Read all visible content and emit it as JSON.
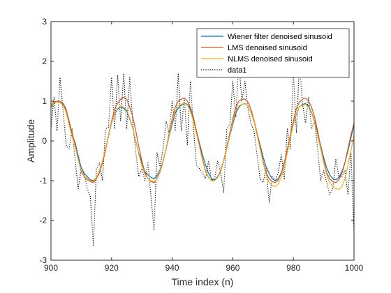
{
  "chart_data": {
    "type": "line",
    "title": "",
    "xlabel": "Time index (n)",
    "ylabel": "Amplitude",
    "xlim": [
      900,
      1000
    ],
    "ylim": [
      -3,
      3
    ],
    "xticks": [
      900,
      920,
      940,
      960,
      980,
      1000
    ],
    "yticks": [
      -3,
      -2,
      -1,
      0,
      1,
      2,
      3
    ],
    "grid": false,
    "legend_position": "top-right",
    "x": [
      900,
      901,
      902,
      903,
      904,
      905,
      906,
      907,
      908,
      909,
      910,
      911,
      912,
      913,
      914,
      915,
      916,
      917,
      918,
      919,
      920,
      921,
      922,
      923,
      924,
      925,
      926,
      927,
      928,
      929,
      930,
      931,
      932,
      933,
      934,
      935,
      936,
      937,
      938,
      939,
      940,
      941,
      942,
      943,
      944,
      945,
      946,
      947,
      948,
      949,
      950,
      951,
      952,
      953,
      954,
      955,
      956,
      957,
      958,
      959,
      960,
      961,
      962,
      963,
      964,
      965,
      966,
      967,
      968,
      969,
      970,
      971,
      972,
      973,
      974,
      975,
      976,
      977,
      978,
      979,
      980,
      981,
      982,
      983,
      984,
      985,
      986,
      987,
      988,
      989,
      990,
      991,
      992,
      993,
      994,
      995,
      996,
      997,
      998,
      999,
      1000
    ],
    "series": [
      {
        "name": "Wiener filter denoised sinusoid",
        "color": "#0072BD",
        "style": "solid",
        "values": [
          0.84,
          0.94,
          0.98,
          0.97,
          0.92,
          0.78,
          0.45,
          0.15,
          -0.05,
          -0.38,
          -0.68,
          -0.82,
          -0.9,
          -0.98,
          -1.0,
          -0.92,
          -0.78,
          -0.52,
          -0.22,
          0.12,
          0.45,
          0.68,
          0.8,
          0.85,
          0.82,
          0.75,
          0.55,
          0.32,
          -0.02,
          -0.32,
          -0.55,
          -0.78,
          -0.85,
          -0.92,
          -0.95,
          -0.88,
          -0.72,
          -0.5,
          -0.2,
          0.12,
          0.42,
          0.7,
          0.82,
          0.9,
          0.95,
          0.92,
          0.8,
          0.55,
          0.25,
          -0.05,
          -0.35,
          -0.6,
          -0.82,
          -0.95,
          -0.98,
          -0.9,
          -0.75,
          -0.5,
          -0.2,
          0.12,
          0.42,
          0.7,
          0.85,
          0.92,
          0.94,
          0.88,
          0.72,
          0.5,
          0.2,
          -0.1,
          -0.4,
          -0.65,
          -0.82,
          -0.95,
          -1.0,
          -0.95,
          -0.8,
          -0.55,
          -0.25,
          0.1,
          0.42,
          0.68,
          0.85,
          0.92,
          0.94,
          0.88,
          0.72,
          0.48,
          0.2,
          -0.12,
          -0.42,
          -0.68,
          -0.85,
          -0.95,
          -0.98,
          -0.92,
          -0.78,
          -0.55,
          -0.25,
          0.08,
          0.4
        ]
      },
      {
        "name": "LMS denoised sinusoid",
        "color": "#D95319",
        "style": "solid",
        "values": [
          0.9,
          0.98,
          1.0,
          1.0,
          0.95,
          0.8,
          0.5,
          0.2,
          -0.1,
          -0.45,
          -0.78,
          -0.9,
          -0.98,
          -1.02,
          -1.05,
          -0.95,
          -0.8,
          -0.55,
          -0.25,
          0.15,
          0.5,
          0.8,
          0.95,
          1.05,
          1.1,
          1.05,
          0.85,
          0.6,
          0.25,
          -0.15,
          -0.5,
          -0.8,
          -0.95,
          -1.02,
          -1.05,
          -0.95,
          -0.78,
          -0.52,
          -0.2,
          0.2,
          0.55,
          0.85,
          1.0,
          1.05,
          1.08,
          1.0,
          0.85,
          0.6,
          0.25,
          -0.1,
          -0.45,
          -0.75,
          -0.92,
          -1.0,
          -1.0,
          -0.92,
          -0.75,
          -0.5,
          -0.15,
          0.2,
          0.55,
          0.85,
          1.0,
          1.05,
          1.05,
          0.98,
          0.8,
          0.52,
          0.2,
          -0.15,
          -0.5,
          -0.8,
          -0.95,
          -1.02,
          -1.05,
          -0.98,
          -0.82,
          -0.55,
          -0.2,
          0.15,
          0.5,
          0.82,
          0.98,
          1.05,
          1.08,
          1.0,
          0.85,
          0.6,
          0.25,
          -0.15,
          -0.5,
          -0.8,
          -0.95,
          -1.02,
          -1.05,
          -0.98,
          -0.82,
          -0.55,
          -0.2,
          0.15,
          0.45
        ]
      },
      {
        "name": "NLMS denoised sinusoid",
        "color": "#EDB120",
        "style": "solid",
        "values": [
          0.86,
          0.95,
          0.98,
          0.96,
          0.9,
          0.72,
          0.4,
          0.1,
          -0.15,
          -0.48,
          -0.75,
          -0.88,
          -0.95,
          -1.0,
          -1.02,
          -0.92,
          -0.75,
          -0.5,
          -0.2,
          0.15,
          0.45,
          0.7,
          0.82,
          0.88,
          0.85,
          0.78,
          0.58,
          0.32,
          0.0,
          -0.35,
          -0.62,
          -0.85,
          -0.95,
          -1.0,
          -1.02,
          -0.95,
          -0.75,
          -0.5,
          -0.2,
          0.15,
          0.48,
          0.75,
          0.88,
          0.92,
          0.95,
          0.9,
          0.75,
          0.5,
          0.18,
          -0.15,
          -0.5,
          -0.78,
          -0.92,
          -1.0,
          -1.0,
          -0.92,
          -0.78,
          -0.52,
          -0.2,
          0.15,
          0.48,
          0.75,
          0.88,
          0.92,
          0.95,
          0.88,
          0.72,
          0.48,
          0.15,
          -0.2,
          -0.55,
          -0.85,
          -1.05,
          -1.12,
          -1.15,
          -1.08,
          -0.92,
          -0.65,
          -0.3,
          0.08,
          0.42,
          0.7,
          0.85,
          0.9,
          0.92,
          0.85,
          0.7,
          0.45,
          0.12,
          -0.2,
          -0.55,
          -0.85,
          -1.05,
          -1.15,
          -1.2,
          -1.22,
          -1.15,
          -0.95,
          -0.62,
          -0.25,
          0.15
        ]
      },
      {
        "name": "data1",
        "color": "#000000",
        "style": "dotted",
        "values": [
          0.3,
          1.1,
          0.25,
          1.6,
          0.75,
          -0.1,
          -0.2,
          0.3,
          -0.5,
          -1.2,
          -0.7,
          -0.85,
          -1.2,
          -1.4,
          -2.65,
          -0.7,
          -0.55,
          -1.0,
          0.3,
          0.35,
          1.6,
          0.3,
          1.65,
          0.5,
          1.7,
          0.3,
          1.6,
          0.45,
          -0.3,
          -0.9,
          -0.7,
          -1.0,
          -0.55,
          -1.4,
          -2.25,
          -0.3,
          -0.65,
          -0.2,
          0.5,
          0.2,
          1.0,
          0.25,
          1.7,
          0.25,
          1.1,
          -0.1,
          1.5,
          0.35,
          -0.6,
          -0.7,
          -0.8,
          -0.95,
          -0.5,
          -1.0,
          -0.95,
          -0.5,
          -0.8,
          -1.3,
          0.3,
          0.4,
          1.5,
          0.6,
          2.0,
          1.0,
          1.5,
          0.8,
          0.45,
          0.25,
          -0.35,
          -0.95,
          -1.05,
          -0.7,
          -1.55,
          -0.9,
          -1.0,
          -0.8,
          -0.35,
          -0.95,
          0.3,
          -0.2,
          1.7,
          0.2,
          2.0,
          0.95,
          0.45,
          1.1,
          0.3,
          0.5,
          -0.2,
          -1.0,
          -0.75,
          -1.05,
          -1.35,
          -1.2,
          -0.45,
          -0.9,
          -0.9,
          -0.75,
          -1.35,
          -0.3,
          -2.3
        ]
      }
    ]
  }
}
